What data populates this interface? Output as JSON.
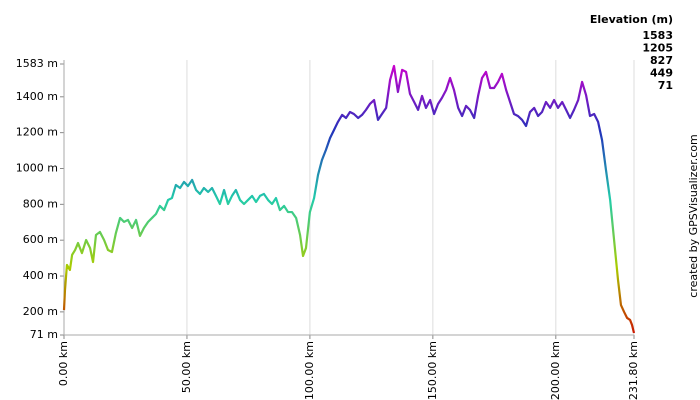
{
  "chart_data": {
    "type": "line",
    "legend_title": "Elevation (m)",
    "credit": "created by GPSVisualizer.com",
    "color_scale": [
      {
        "value": 1583,
        "color": "#cc00cc"
      },
      {
        "value": 1205,
        "color": "#2233bb"
      },
      {
        "value": 827,
        "color": "#22ccaa"
      },
      {
        "value": 449,
        "color": "#aacc00"
      },
      {
        "value": 71,
        "color": "#cc1100"
      }
    ],
    "x": [
      0,
      0.4,
      1.2,
      2.4,
      3.3,
      4.5,
      5.7,
      7.3,
      9,
      10.6,
      11.8,
      13,
      14.6,
      16.3,
      17.9,
      19.5,
      21.1,
      22.8,
      24.4,
      26,
      27.7,
      29.3,
      30.9,
      32.5,
      34.2,
      35.8,
      37.4,
      39,
      40.7,
      42.3,
      43.9,
      45.5,
      47.2,
      48.8,
      50.4,
      52.1,
      53.7,
      55.3,
      56.9,
      58.6,
      60.2,
      61.8,
      63.4,
      65.1,
      66.7,
      68.3,
      69.9,
      71.6,
      73.2,
      74.8,
      76.5,
      78.1,
      79.7,
      81.3,
      83,
      84.6,
      86.2,
      87.8,
      89.5,
      91.1,
      92.7,
      94.4,
      96,
      97.2,
      98.4,
      100,
      101.7,
      103.3,
      104.9,
      106.5,
      108.2,
      109.8,
      111.4,
      113.1,
      114.7,
      116.3,
      117.9,
      119.6,
      121.2,
      122.8,
      124.4,
      126.1,
      127.7,
      129.3,
      131,
      132.6,
      134.2,
      135.8,
      137.5,
      139.1,
      140.7,
      142.4,
      144,
      145.6,
      147.2,
      148.9,
      150.5,
      152.1,
      153.7,
      155.4,
      157,
      158.6,
      160.3,
      161.9,
      163.5,
      165.1,
      166.8,
      168.4,
      170,
      171.6,
      173.3,
      174.9,
      176.5,
      178.1,
      179.8,
      181.4,
      183,
      184.6,
      186.3,
      187.9,
      189.5,
      191.2,
      192.8,
      194.4,
      196,
      197.7,
      199.3,
      200.9,
      202.6,
      204.2,
      205.8,
      207.4,
      209.1,
      210.7,
      212.3,
      213.9,
      215.6,
      217.2,
      218.8,
      220.4,
      222.1,
      223.7,
      225.3,
      226.5,
      227.8,
      229,
      230.2,
      231,
      231.8
    ],
    "series": [
      {
        "name": "Elevation",
        "values": [
          210,
          322,
          462,
          434,
          518,
          545,
          584,
          528,
          601,
          556,
          478,
          629,
          646,
          601,
          545,
          534,
          640,
          724,
          702,
          713,
          668,
          713,
          624,
          668,
          702,
          724,
          746,
          791,
          768,
          824,
          835,
          908,
          891,
          925,
          902,
          936,
          880,
          858,
          891,
          869,
          891,
          847,
          802,
          880,
          802,
          847,
          880,
          824,
          802,
          824,
          847,
          813,
          847,
          858,
          824,
          802,
          835,
          768,
          791,
          757,
          757,
          724,
          629,
          512,
          556,
          757,
          835,
          964,
          1047,
          1103,
          1170,
          1215,
          1260,
          1299,
          1282,
          1315,
          1304,
          1282,
          1299,
          1327,
          1360,
          1382,
          1271,
          1304,
          1338,
          1494,
          1572,
          1427,
          1550,
          1539,
          1416,
          1371,
          1327,
          1405,
          1338,
          1382,
          1304,
          1360,
          1394,
          1438,
          1505,
          1438,
          1338,
          1293,
          1349,
          1327,
          1282,
          1405,
          1505,
          1539,
          1449,
          1449,
          1483,
          1528,
          1438,
          1371,
          1304,
          1293,
          1271,
          1237,
          1315,
          1338,
          1293,
          1315,
          1371,
          1338,
          1382,
          1338,
          1371,
          1327,
          1282,
          1327,
          1382,
          1483,
          1410,
          1293,
          1304,
          1260,
          1159,
          992,
          824,
          601,
          378,
          238,
          199,
          166,
          155,
          127,
          82
        ]
      }
    ],
    "xlim": [
      0,
      231.8
    ],
    "xticks": [
      {
        "value": 0,
        "label": "0.00 km"
      },
      {
        "value": 50,
        "label": "50.00 km"
      },
      {
        "value": 100,
        "label": "100.00 km"
      },
      {
        "value": 150,
        "label": "150.00 km"
      },
      {
        "value": 200,
        "label": "200.00 km"
      },
      {
        "value": 231.8,
        "label": "231.80 km"
      }
    ],
    "ylim": [
      71,
      1583
    ],
    "yticks": [
      {
        "value": 71,
        "label": "71 m"
      },
      {
        "value": 200,
        "label": "200 m"
      },
      {
        "value": 400,
        "label": "400 m"
      },
      {
        "value": 600,
        "label": "600 m"
      },
      {
        "value": 800,
        "label": "800 m"
      },
      {
        "value": 1000,
        "label": "1000 m"
      },
      {
        "value": 1200,
        "label": "1200 m"
      },
      {
        "value": 1400,
        "label": "1400 m"
      },
      {
        "value": 1583,
        "label": "1583 m"
      }
    ],
    "grid": true
  }
}
